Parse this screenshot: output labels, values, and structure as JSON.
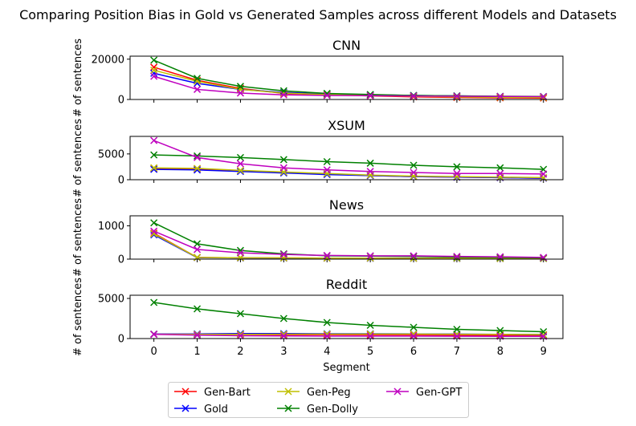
{
  "figure": {
    "title": "Comparing Position Bias in Gold vs Generated Samples across different Models and Datasets"
  },
  "colors": {
    "Gen-Bart": "#ff0000",
    "Gold": "#0000ff",
    "Gen-Peg": "#bfbf00",
    "Gen-Dolly": "#008000",
    "Gen-GPT": "#bf00bf"
  },
  "legend": {
    "placement": "bottom-center",
    "order": [
      "Gen-Bart",
      "Gold",
      "Gen-Peg",
      "Gen-Dolly",
      "Gen-GPT"
    ]
  },
  "chart_data": [
    {
      "type": "line",
      "title": "CNN",
      "xlabel": "",
      "ylabel": "# of sentences",
      "x": [
        0,
        1,
        2,
        3,
        4,
        5,
        6,
        7,
        8,
        9
      ],
      "xlim": [
        -0.55,
        9.45
      ],
      "ylim": [
        0,
        21500
      ],
      "yticks": [
        0,
        20000
      ],
      "marker": "x",
      "series": [
        {
          "name": "Gen-Bart",
          "values": [
            16000,
            9500,
            5500,
            3000,
            2300,
            1800,
            1300,
            1000,
            800,
            700
          ]
        },
        {
          "name": "Gold",
          "values": [
            13000,
            8000,
            5000,
            3500,
            2800,
            2300,
            2000,
            1800,
            1500,
            1400
          ]
        },
        {
          "name": "Gen-Peg",
          "values": [
            14500,
            9000,
            5000,
            3200,
            2400,
            2000,
            1600,
            1300,
            1100,
            1000
          ]
        },
        {
          "name": "Gen-Dolly",
          "values": [
            19500,
            10500,
            6500,
            4300,
            3000,
            2500,
            2000,
            1800,
            1600,
            1500
          ]
        },
        {
          "name": "Gen-GPT",
          "values": [
            11500,
            5000,
            3200,
            2300,
            2000,
            1900,
            1700,
            1600,
            1500,
            1400
          ]
        }
      ]
    },
    {
      "type": "line",
      "title": "XSUM",
      "xlabel": "",
      "ylabel": "# of sentences",
      "x": [
        0,
        1,
        2,
        3,
        4,
        5,
        6,
        7,
        8,
        9
      ],
      "xlim": [
        -0.55,
        9.45
      ],
      "ylim": [
        0,
        8400
      ],
      "yticks": [
        0,
        5000
      ],
      "marker": "x",
      "series": [
        {
          "name": "Gen-Bart",
          "values": [
            2200,
            2100,
            1700,
            1400,
            1100,
            800,
            600,
            500,
            400,
            300
          ]
        },
        {
          "name": "Gold",
          "values": [
            2000,
            1900,
            1600,
            1300,
            1000,
            800,
            600,
            500,
            400,
            300
          ]
        },
        {
          "name": "Gen-Peg",
          "values": [
            2300,
            2200,
            1800,
            1500,
            1200,
            900,
            700,
            600,
            500,
            400
          ]
        },
        {
          "name": "Gen-Dolly",
          "values": [
            4800,
            4600,
            4300,
            3900,
            3500,
            3200,
            2800,
            2500,
            2300,
            2000
          ]
        },
        {
          "name": "Gen-GPT",
          "values": [
            7600,
            4300,
            3100,
            2300,
            1900,
            1600,
            1400,
            1200,
            1200,
            1100
          ]
        }
      ]
    },
    {
      "type": "line",
      "title": "News",
      "xlabel": "",
      "ylabel": "# of sentences",
      "x": [
        0,
        1,
        2,
        3,
        4,
        5,
        6,
        7,
        8,
        9
      ],
      "xlim": [
        -0.55,
        9.45
      ],
      "ylim": [
        0,
        1300
      ],
      "yticks": [
        0,
        1000
      ],
      "marker": "x",
      "series": [
        {
          "name": "Gen-Bart",
          "values": [
            780,
            50,
            40,
            35,
            30,
            30,
            25,
            25,
            20,
            20
          ]
        },
        {
          "name": "Gold",
          "values": [
            730,
            45,
            35,
            30,
            30,
            25,
            25,
            20,
            20,
            20
          ]
        },
        {
          "name": "Gen-Peg",
          "values": [
            760,
            50,
            40,
            35,
            30,
            30,
            25,
            25,
            20,
            20
          ]
        },
        {
          "name": "Gen-Dolly",
          "values": [
            1090,
            460,
            260,
            160,
            100,
            90,
            80,
            60,
            50,
            40
          ]
        },
        {
          "name": "Gen-GPT",
          "values": [
            840,
            290,
            190,
            140,
            110,
            100,
            100,
            80,
            70,
            50
          ]
        }
      ]
    },
    {
      "type": "line",
      "title": "Reddit",
      "xlabel": "Segment",
      "ylabel": "# of sentences",
      "x": [
        0,
        1,
        2,
        3,
        4,
        5,
        6,
        7,
        8,
        9
      ],
      "xticks": [
        "0",
        "1",
        "2",
        "3",
        "4",
        "5",
        "6",
        "7",
        "8",
        "9"
      ],
      "xlim": [
        -0.55,
        9.45
      ],
      "ylim": [
        0,
        5400
      ],
      "yticks": [
        0,
        5000
      ],
      "marker": "x",
      "series": [
        {
          "name": "Gen-Bart",
          "values": [
            550,
            520,
            500,
            480,
            470,
            460,
            450,
            430,
            420,
            400
          ]
        },
        {
          "name": "Gold",
          "values": [
            560,
            580,
            620,
            620,
            600,
            600,
            580,
            560,
            530,
            500
          ]
        },
        {
          "name": "Gen-Peg",
          "values": [
            540,
            520,
            520,
            540,
            550,
            560,
            560,
            540,
            520,
            500
          ]
        },
        {
          "name": "Gen-Dolly",
          "values": [
            4500,
            3700,
            3100,
            2500,
            2000,
            1650,
            1400,
            1150,
            1000,
            850
          ]
        },
        {
          "name": "Gen-GPT",
          "values": [
            520,
            420,
            350,
            320,
            300,
            300,
            300,
            290,
            280,
            270
          ]
        }
      ]
    }
  ]
}
